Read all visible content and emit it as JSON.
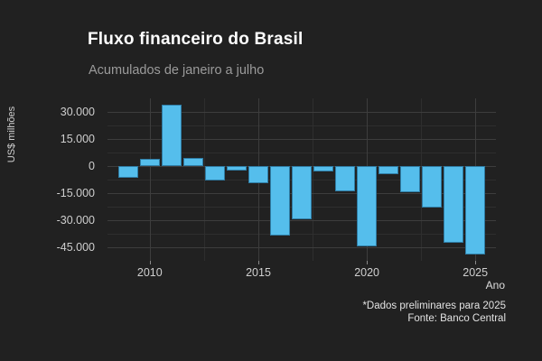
{
  "header": {
    "title": "Fluxo financeiro do Brasil",
    "subtitle": "Acumulados de janeiro a julho"
  },
  "caption": {
    "line1": "*Dados preliminares para 2025",
    "line2": "Fonte: Banco Central"
  },
  "colors": {
    "background": "#212121",
    "bar": "#55BEEC",
    "grid_major": "#3d3d3d",
    "grid_minor": "#2e2e2e",
    "title": "#ffffff",
    "subtitle": "#9b9b9b",
    "axis_text": "#cfcfcf"
  },
  "chart_data": {
    "type": "bar",
    "title": "Fluxo financeiro do Brasil",
    "subtitle": "Acumulados de janeiro a julho",
    "xlabel": "Ano",
    "ylabel": "US$ milhões",
    "categories": [
      2009,
      2010,
      2011,
      2012,
      2013,
      2014,
      2015,
      2016,
      2017,
      2018,
      2019,
      2020,
      2021,
      2022,
      2023,
      2024,
      2025
    ],
    "values": [
      -6300,
      4200,
      33800,
      4700,
      -8100,
      -2400,
      -9500,
      -38600,
      -29400,
      -3100,
      -14000,
      -44500,
      -4400,
      -14400,
      -23100,
      -42600,
      -48800
    ],
    "units": "US$ milhões (milhões de dólares)",
    "ylim": [
      -52500,
      37500
    ],
    "xlim": [
      2008.05,
      2025.95
    ],
    "yticks": [
      {
        "value": 30000,
        "label": "30.000"
      },
      {
        "value": 15000,
        "label": "15.000"
      },
      {
        "value": 0,
        "label": "0"
      },
      {
        "value": -15000,
        "label": "-15.000"
      },
      {
        "value": -30000,
        "label": "-30.000"
      },
      {
        "value": -45000,
        "label": "-45.000"
      }
    ],
    "yticks_minor": [
      22500,
      7500,
      -7500,
      -22500,
      -37500
    ],
    "xticks": [
      {
        "value": 2010,
        "label": "2010"
      },
      {
        "value": 2015,
        "label": "2015"
      },
      {
        "value": 2020,
        "label": "2020"
      },
      {
        "value": 2025,
        "label": "2025"
      }
    ],
    "xticks_minor": [
      2012.5,
      2017.5,
      2022.5
    ],
    "grid": true,
    "legend": false,
    "bar_width_years": 0.9,
    "annotation": "*Dados preliminares para 2025 | Fonte: Banco Central"
  }
}
